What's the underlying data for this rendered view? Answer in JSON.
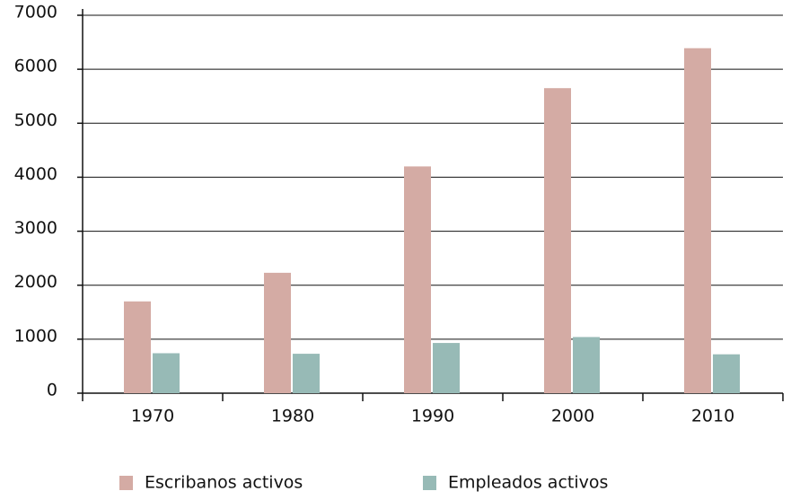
{
  "chart_data": {
    "type": "bar",
    "categories": [
      "1970",
      "1980",
      "1990",
      "2000",
      "2010"
    ],
    "series": [
      {
        "name": "Escribanos activos",
        "color": "#d4aba4",
        "values": [
          1700,
          2230,
          4200,
          5650,
          6390
        ]
      },
      {
        "name": "Empleados activos",
        "color": "#97bab6",
        "values": [
          740,
          730,
          930,
          1040,
          720
        ]
      }
    ],
    "ylim": [
      0,
      7000
    ],
    "yticks": [
      0,
      1000,
      2000,
      3000,
      4000,
      5000,
      6000,
      7000
    ],
    "grid": true,
    "legend": "bottom"
  }
}
